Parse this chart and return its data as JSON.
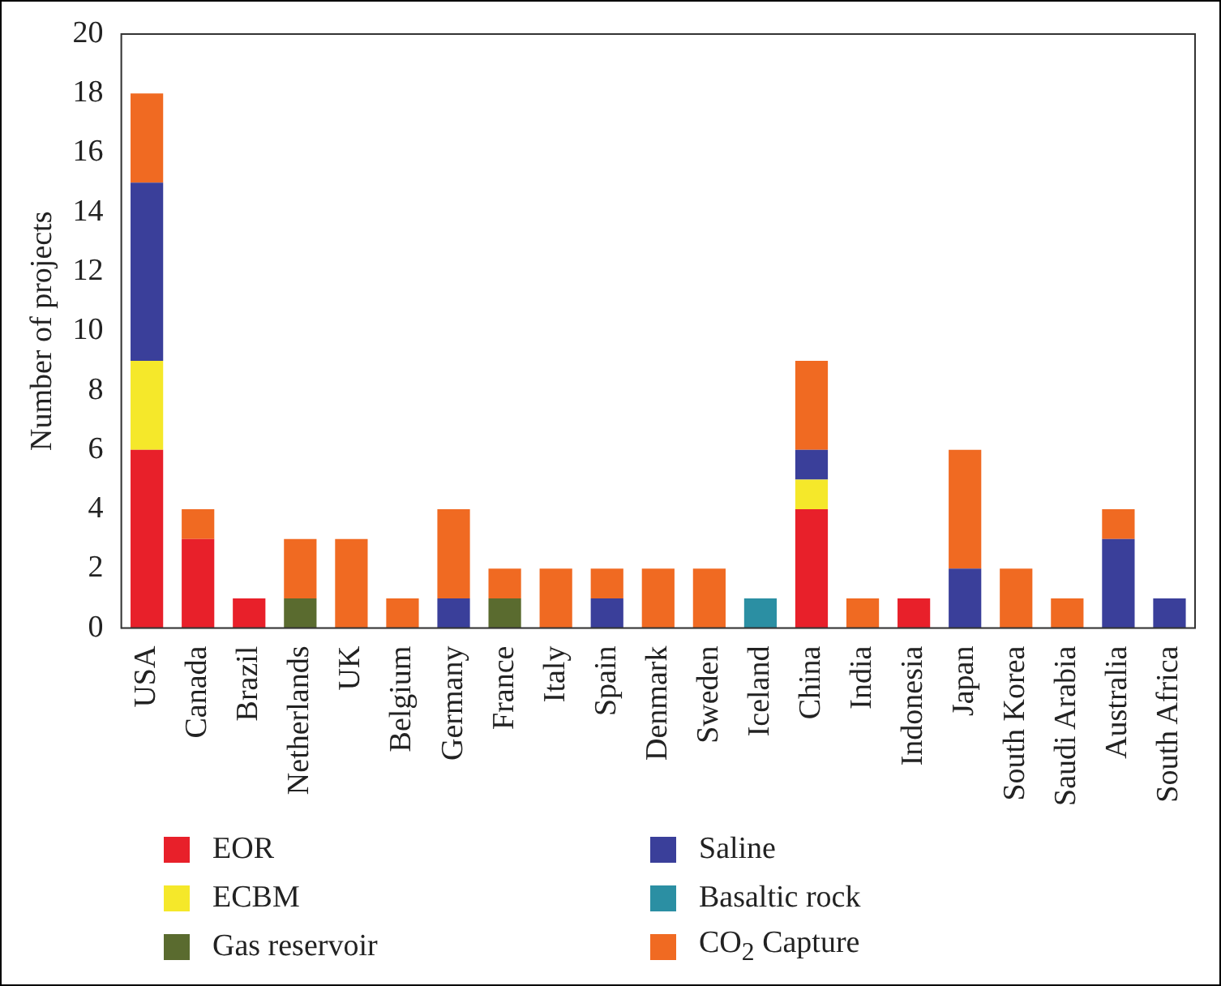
{
  "chart_data": {
    "type": "bar",
    "stacked": true,
    "ylabel": "Number of projects",
    "categories": [
      "USA",
      "Canada",
      "Brazil",
      "Netherlands",
      "UK",
      "Belgium",
      "Germany",
      "France",
      "Italy",
      "Spain",
      "Denmark",
      "Sweden",
      "Iceland",
      "China",
      "India",
      "Indonesia",
      "Japan",
      "South Korea",
      "Saudi Arabia",
      "Australia",
      "South Africa"
    ],
    "series": [
      {
        "name": "EOR",
        "color": "#e8202a",
        "values": [
          6,
          3,
          1,
          null,
          null,
          null,
          null,
          null,
          null,
          null,
          null,
          null,
          null,
          4,
          null,
          1,
          null,
          null,
          null,
          null,
          null
        ]
      },
      {
        "name": "ECBM",
        "color": "#f5e82a",
        "values": [
          3,
          null,
          null,
          null,
          null,
          null,
          null,
          null,
          null,
          null,
          null,
          null,
          null,
          1,
          null,
          null,
          null,
          null,
          null,
          null,
          null
        ]
      },
      {
        "name": "Gas reservoir",
        "color": "#5a6b2f",
        "values": [
          null,
          null,
          null,
          1,
          null,
          null,
          null,
          1,
          null,
          null,
          null,
          null,
          null,
          null,
          null,
          null,
          null,
          null,
          null,
          null,
          null
        ]
      },
      {
        "name": "Saline",
        "color": "#3a3f9a",
        "values": [
          6,
          null,
          null,
          null,
          null,
          null,
          1,
          null,
          null,
          1,
          null,
          null,
          null,
          1,
          null,
          null,
          2,
          null,
          null,
          3,
          1
        ]
      },
      {
        "name": "Basaltic rock",
        "color": "#2b8fa3",
        "values": [
          null,
          null,
          null,
          null,
          null,
          null,
          null,
          null,
          null,
          null,
          null,
          null,
          1,
          null,
          null,
          null,
          null,
          null,
          null,
          null,
          null
        ]
      },
      {
        "name": "CO$_{2}$ Capture",
        "color": "#f06a22",
        "values": [
          3,
          1,
          null,
          2,
          3,
          1,
          3,
          1,
          2,
          1,
          2,
          2,
          null,
          3,
          1,
          null,
          4,
          2,
          1,
          1,
          null
        ]
      }
    ],
    "ylim": [
      0,
      20
    ],
    "yticks": [
      0,
      2,
      4,
      6,
      8,
      10,
      12,
      14,
      16,
      18,
      20
    ],
    "grid": false,
    "legend": "bottom"
  }
}
